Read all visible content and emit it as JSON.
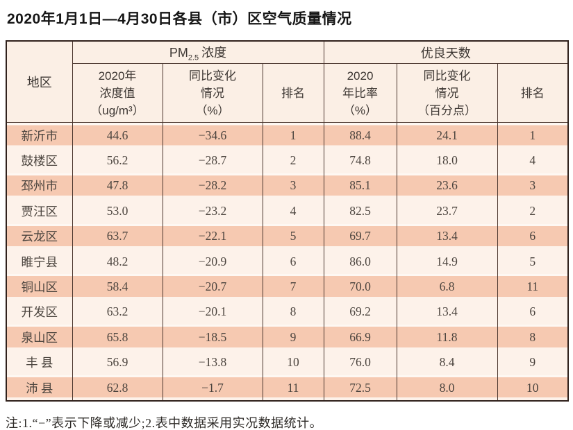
{
  "title": "2020年1月1日—4月30日各县（市）区空气质量情况",
  "table": {
    "corner_header": "地区",
    "group_pm": {
      "prefix": "PM",
      "sub": "2.5",
      "suffix": "浓度"
    },
    "group_days": "优良天数",
    "col_headers": {
      "pm_value": [
        "2020年",
        "浓度值",
        "（ug/m³）"
      ],
      "pm_change": [
        "同比变化",
        "情况",
        "（%）"
      ],
      "pm_rank": "排名",
      "days_rate": [
        "2020",
        "年比率",
        "（%）"
      ],
      "days_change": [
        "同比变化",
        "情况",
        "（百分点）"
      ],
      "days_rank": "排名"
    },
    "column_keys": [
      "region",
      "pm_value",
      "pm_change",
      "pm_rank",
      "days_rate",
      "days_change",
      "days_rank"
    ],
    "rows": [
      {
        "region": "新沂市",
        "pm_value": "44.6",
        "pm_change": "−34.6",
        "pm_rank": "1",
        "days_rate": "88.4",
        "days_change": "24.1",
        "days_rank": "1"
      },
      {
        "region": "鼓楼区",
        "pm_value": "56.2",
        "pm_change": "−28.7",
        "pm_rank": "2",
        "days_rate": "74.8",
        "days_change": "18.0",
        "days_rank": "4"
      },
      {
        "region": "邳州市",
        "pm_value": "47.8",
        "pm_change": "−28.2",
        "pm_rank": "3",
        "days_rate": "85.1",
        "days_change": "23.6",
        "days_rank": "3"
      },
      {
        "region": "贾汪区",
        "pm_value": "53.0",
        "pm_change": "−23.2",
        "pm_rank": "4",
        "days_rate": "82.5",
        "days_change": "23.7",
        "days_rank": "2"
      },
      {
        "region": "云龙区",
        "pm_value": "63.7",
        "pm_change": "−22.1",
        "pm_rank": "5",
        "days_rate": "69.7",
        "days_change": "13.4",
        "days_rank": "6"
      },
      {
        "region": "睢宁县",
        "pm_value": "48.2",
        "pm_change": "−20.9",
        "pm_rank": "6",
        "days_rate": "86.0",
        "days_change": "14.9",
        "days_rank": "5"
      },
      {
        "region": "铜山区",
        "pm_value": "58.4",
        "pm_change": "−20.7",
        "pm_rank": "7",
        "days_rate": "70.0",
        "days_change": "6.8",
        "days_rank": "11"
      },
      {
        "region": "开发区",
        "pm_value": "63.2",
        "pm_change": "−20.1",
        "pm_rank": "8",
        "days_rate": "69.2",
        "days_change": "13.4",
        "days_rank": "6"
      },
      {
        "region": "泉山区",
        "pm_value": "65.8",
        "pm_change": "−18.5",
        "pm_rank": "9",
        "days_rate": "66.9",
        "days_change": "11.8",
        "days_rank": "8"
      },
      {
        "region": "丰 县",
        "pm_value": "56.9",
        "pm_change": "−13.8",
        "pm_rank": "10",
        "days_rate": "76.0",
        "days_change": "8.4",
        "days_rank": "9"
      },
      {
        "region": "沛 县",
        "pm_value": "62.8",
        "pm_change": "−1.7",
        "pm_rank": "11",
        "days_rate": "72.5",
        "days_change": "8.0",
        "days_rank": "10"
      }
    ]
  },
  "footnote": "注:1.“−”表示下降或减少;2.表中数据采用实况数据统计。",
  "colors": {
    "stripe_odd": "#f6c9b1",
    "stripe_even": "#fdf2ea",
    "header_bg": "#fbefe5",
    "border_outer": "#30211c",
    "border_inner": "#4a352d"
  }
}
